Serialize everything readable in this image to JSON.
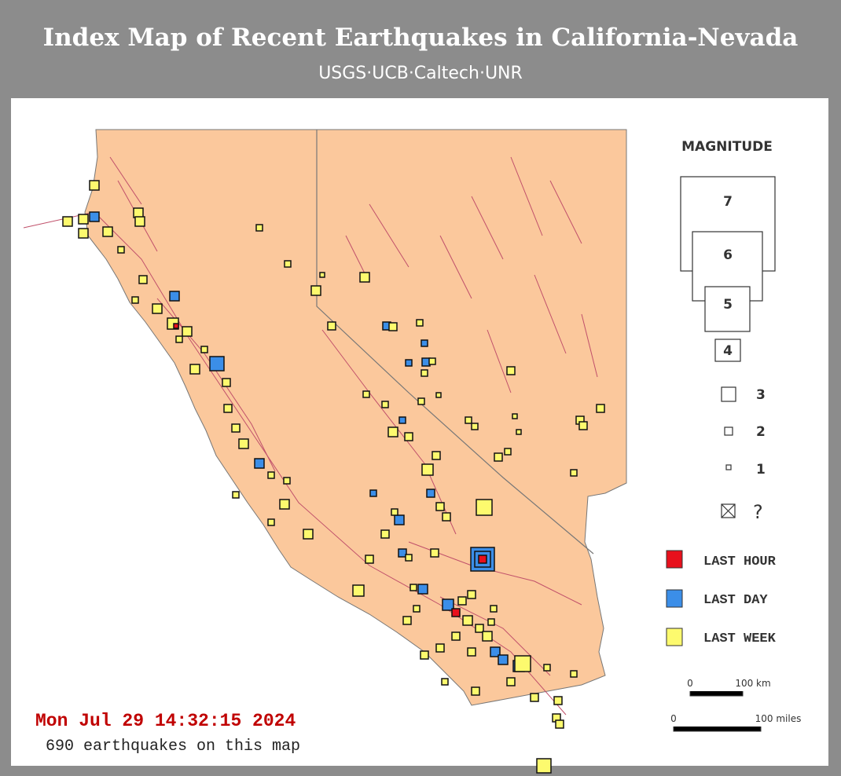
{
  "header": {
    "title": "Index Map of Recent Earthquakes in California-Nevada",
    "subtitle": "USGS·UCB·Caltech·UNR"
  },
  "legend": {
    "magnitude_title": "MAGNITUDE",
    "magnitudes": [
      "7",
      "6",
      "5",
      "4",
      "3",
      "2",
      "1",
      "?"
    ],
    "ages": [
      "LAST HOUR",
      "LAST DAY",
      "LAST WEEK"
    ]
  },
  "scale": {
    "km": [
      "0",
      "100 km"
    ],
    "miles": [
      "0",
      "100 miles"
    ]
  },
  "footer": {
    "timestamp": "Mon Jul 29 14:32:15 2024",
    "count": "690 earthquakes on this map"
  }
}
